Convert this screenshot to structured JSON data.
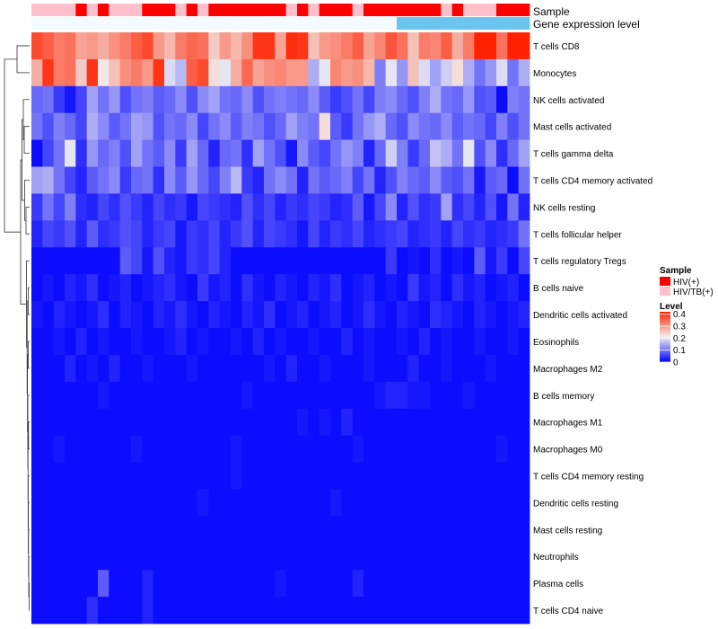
{
  "chart_data": {
    "type": "heatmap",
    "title": "",
    "annotation_tracks": [
      "Sample",
      "Gene expression level"
    ],
    "legends": {
      "sample": {
        "title": "Sample",
        "entries": [
          {
            "label": "HIV(+)",
            "color": "#ff0000"
          },
          {
            "label": "HIV/TB(+)",
            "color": "#ffc0cb"
          }
        ]
      },
      "level": {
        "title": "Level",
        "ticks": [
          "0.4",
          "0.3",
          "0.2",
          "0.1",
          "0"
        ],
        "tick_values": [
          0.4,
          0.3,
          0.2,
          0.1,
          0
        ],
        "range": [
          0,
          0.42
        ],
        "colors": {
          "low": "#0000ff",
          "mid": "#f2f2f2",
          "high": "#ff2200"
        }
      }
    },
    "sample_groups": [
      "HIV/TB(+)",
      "HIV/TB(+)",
      "HIV/TB(+)",
      "HIV/TB(+)",
      "HIV(+)",
      "HIV/TB(+)",
      "HIV(+)",
      "HIV/TB(+)",
      "HIV/TB(+)",
      "HIV/TB(+)",
      "HIV(+)",
      "HIV(+)",
      "HIV(+)",
      "HIV/TB(+)",
      "HIV(+)",
      "HIV/TB(+)",
      "HIV(+)",
      "HIV(+)",
      "HIV(+)",
      "HIV(+)",
      "HIV(+)",
      "HIV(+)",
      "HIV(+)",
      "HIV/TB(+)",
      "HIV(+)",
      "HIV/TB(+)",
      "HIV(+)",
      "HIV(+)",
      "HIV(+)",
      "HIV/TB(+)",
      "HIV(+)",
      "HIV(+)",
      "HIV(+)",
      "HIV(+)",
      "HIV(+)",
      "HIV(+)",
      "HIV(+)",
      "HIV/TB(+)",
      "HIV(+)",
      "HIV/TB(+)",
      "HIV/TB(+)",
      "HIV/TB(+)",
      "HIV(+)",
      "HIV(+)",
      "HIV(+)"
    ],
    "expression_track": [
      0,
      0,
      0,
      0,
      0,
      0,
      0,
      0,
      0,
      0,
      0,
      0,
      0,
      0,
      0,
      0,
      0,
      0,
      0,
      0,
      0,
      0,
      0,
      0,
      0,
      0,
      0,
      0,
      0,
      0,
      0,
      0,
      0,
      1,
      1,
      1,
      1,
      1,
      1,
      1,
      1,
      1,
      1,
      1,
      1
    ],
    "expression_track_colors": [
      "#f4fbfe",
      "#6cc5ee"
    ],
    "rows": [
      "T cells CD8",
      "Monocytes",
      "NK cells activated",
      "Mast cells activated",
      "T cells gamma delta",
      "T cells CD4 memory activated",
      "NK cells resting",
      "T cells follicular helper",
      "T cells regulatory  Tregs",
      "B cells naive",
      "Dendritic cells activated",
      "Eosinophils",
      "Macrophages M2",
      "B cells memory",
      "Macrophages M1",
      "Macrophages M0",
      "T cells CD4 memory resting",
      "Dendritic cells resting",
      "Mast cells resting",
      "Neutrophils",
      "Plasma cells",
      "T cells CD4 naive"
    ],
    "values": [
      [
        0.38,
        0.36,
        0.33,
        0.34,
        0.29,
        0.3,
        0.28,
        0.31,
        0.33,
        0.36,
        0.38,
        0.3,
        0.27,
        0.33,
        0.35,
        0.34,
        0.25,
        0.3,
        0.27,
        0.31,
        0.4,
        0.4,
        0.29,
        0.41,
        0.4,
        0.26,
        0.3,
        0.31,
        0.33,
        0.36,
        0.29,
        0.32,
        0.37,
        0.34,
        0.26,
        0.33,
        0.32,
        0.36,
        0.28,
        0.33,
        0.42,
        0.42,
        0.34,
        0.42,
        0.42
      ],
      [
        0.28,
        0.4,
        0.33,
        0.34,
        0.25,
        0.4,
        0.22,
        0.26,
        0.31,
        0.33,
        0.3,
        0.4,
        0.19,
        0.16,
        0.36,
        0.38,
        0.23,
        0.2,
        0.28,
        0.35,
        0.29,
        0.31,
        0.32,
        0.3,
        0.3,
        0.15,
        0.2,
        0.32,
        0.3,
        0.31,
        0.27,
        0.11,
        0.2,
        0.13,
        0.26,
        0.19,
        0.14,
        0.18,
        0.23,
        0.15,
        0.1,
        0.13,
        0.19,
        0.1,
        0.15
      ],
      [
        0.09,
        0.1,
        0.05,
        0.02,
        0.06,
        0.14,
        0.1,
        0.13,
        0.07,
        0.1,
        0.11,
        0.08,
        0.09,
        0.12,
        0.07,
        0.12,
        0.14,
        0.1,
        0.09,
        0.12,
        0.07,
        0.1,
        0.11,
        0.1,
        0.09,
        0.12,
        0.08,
        0.05,
        0.07,
        0.1,
        0.06,
        0.11,
        0.12,
        0.09,
        0.07,
        0.11,
        0.15,
        0.1,
        0.09,
        0.13,
        0.07,
        0.08,
        0.01,
        0.11,
        0.1
      ],
      [
        0.1,
        0.07,
        0.11,
        0.09,
        0.06,
        0.15,
        0.12,
        0.08,
        0.1,
        0.14,
        0.13,
        0.07,
        0.1,
        0.09,
        0.12,
        0.06,
        0.1,
        0.12,
        0.08,
        0.11,
        0.1,
        0.07,
        0.09,
        0.14,
        0.11,
        0.1,
        0.23,
        0.08,
        0.05,
        0.1,
        0.13,
        0.15,
        0.09,
        0.07,
        0.12,
        0.1,
        0.09,
        0.12,
        0.08,
        0.1,
        0.09,
        0.06,
        0.11,
        0.07,
        0.1
      ],
      [
        0.01,
        0.06,
        0.1,
        0.2,
        0.04,
        0.13,
        0.09,
        0.11,
        0.07,
        0.14,
        0.1,
        0.08,
        0.12,
        0.05,
        0.14,
        0.09,
        0.03,
        0.09,
        0.1,
        0.04,
        0.14,
        0.1,
        0.07,
        0.02,
        0.12,
        0.08,
        0.06,
        0.1,
        0.13,
        0.11,
        0.03,
        0.09,
        0.18,
        0.11,
        0.05,
        0.09,
        0.17,
        0.15,
        0.1,
        0.2,
        0.07,
        0.12,
        0.04,
        0.09,
        0.14
      ],
      [
        0.14,
        0.15,
        0.1,
        0.06,
        0.03,
        0.08,
        0.1,
        0.12,
        0.05,
        0.09,
        0.1,
        0.04,
        0.12,
        0.08,
        0.13,
        0.09,
        0.06,
        0.11,
        0.16,
        0.05,
        0.03,
        0.1,
        0.12,
        0.1,
        0.03,
        0.1,
        0.08,
        0.09,
        0.11,
        0.06,
        0.1,
        0.03,
        0.07,
        0.11,
        0.09,
        0.08,
        0.12,
        0.08,
        0.07,
        0.1,
        0.02,
        0.08,
        0.09,
        0.01,
        0.1
      ],
      [
        0.05,
        0.1,
        0.06,
        0.11,
        0.04,
        0.03,
        0.06,
        0.04,
        0.07,
        0.05,
        0.03,
        0.06,
        0.04,
        0.05,
        0.02,
        0.06,
        0.05,
        0.04,
        0.03,
        0.07,
        0.04,
        0.06,
        0.03,
        0.05,
        0.04,
        0.06,
        0.05,
        0.03,
        0.04,
        0.08,
        0.02,
        0.06,
        0.12,
        0.03,
        0.07,
        0.04,
        0.05,
        0.14,
        0.04,
        0.06,
        0.03,
        0.07,
        0.02,
        0.1,
        0.03
      ],
      [
        0.03,
        0.06,
        0.05,
        0.07,
        0.03,
        0.08,
        0.04,
        0.05,
        0.07,
        0.06,
        0.03,
        0.05,
        0.06,
        0.02,
        0.05,
        0.04,
        0.06,
        0.03,
        0.05,
        0.07,
        0.03,
        0.06,
        0.05,
        0.04,
        0.02,
        0.06,
        0.03,
        0.05,
        0.04,
        0.06,
        0.03,
        0.04,
        0.05,
        0.06,
        0.03,
        0.04,
        0.05,
        0.03,
        0.06,
        0.04,
        0.05,
        0.03,
        0.04,
        0.05,
        0.1
      ],
      [
        0.01,
        0.01,
        0.01,
        0.01,
        0.01,
        0.01,
        0.01,
        0.01,
        0.08,
        0.06,
        0.02,
        0.07,
        0.03,
        0.02,
        0.05,
        0.04,
        0.06,
        0.03,
        0.01,
        0.01,
        0.01,
        0.01,
        0.01,
        0.01,
        0.01,
        0.01,
        0.01,
        0.01,
        0.01,
        0.01,
        0.01,
        0.01,
        0.05,
        0.01,
        0.02,
        0.01,
        0.04,
        0.01,
        0.02,
        0.01,
        0.08,
        0.02,
        0.05,
        0.01,
        0.06
      ],
      [
        0.01,
        0.02,
        0.01,
        0.03,
        0.02,
        0.04,
        0.01,
        0.02,
        0.03,
        0.01,
        0.02,
        0.03,
        0.04,
        0.02,
        0.01,
        0.05,
        0.02,
        0.03,
        0.01,
        0.04,
        0.02,
        0.01,
        0.03,
        0.02,
        0.01,
        0.03,
        0.02,
        0.04,
        0.01,
        0.02,
        0.03,
        0.01,
        0.02,
        0.01,
        0.05,
        0.02,
        0.03,
        0.01,
        0.04,
        0.02,
        0.03,
        0.01,
        0.02,
        0.03,
        0.01
      ],
      [
        0.02,
        0.01,
        0.03,
        0.02,
        0.01,
        0.02,
        0.04,
        0.01,
        0.03,
        0.02,
        0.01,
        0.03,
        0.02,
        0.04,
        0.02,
        0.01,
        0.03,
        0.02,
        0.01,
        0.03,
        0.02,
        0.04,
        0.01,
        0.02,
        0.03,
        0.01,
        0.02,
        0.03,
        0.01,
        0.02,
        0.04,
        0.02,
        0.01,
        0.03,
        0.02,
        0.01,
        0.04,
        0.03,
        0.02,
        0.01,
        0.03,
        0.02,
        0.01,
        0.02,
        0.03
      ],
      [
        0.01,
        0.01,
        0.02,
        0.01,
        0.03,
        0.01,
        0.02,
        0.01,
        0.01,
        0.02,
        0.01,
        0.01,
        0.02,
        0.03,
        0.01,
        0.02,
        0.01,
        0.01,
        0.02,
        0.01,
        0.03,
        0.01,
        0.02,
        0.01,
        0.01,
        0.02,
        0.01,
        0.01,
        0.03,
        0.01,
        0.02,
        0.01,
        0.01,
        0.02,
        0.01,
        0.03,
        0.01,
        0.02,
        0.01,
        0.01,
        0.02,
        0.01,
        0.01,
        0.02,
        0.01
      ],
      [
        0.01,
        0.01,
        0.01,
        0.03,
        0.01,
        0.02,
        0.01,
        0.03,
        0.01,
        0.01,
        0.02,
        0.01,
        0.01,
        0.01,
        0.02,
        0.01,
        0.01,
        0.01,
        0.01,
        0.01,
        0.01,
        0.02,
        0.01,
        0.03,
        0.01,
        0.01,
        0.02,
        0.01,
        0.01,
        0.01,
        0.02,
        0.01,
        0.01,
        0.01,
        0.03,
        0.01,
        0.01,
        0.02,
        0.01,
        0.01,
        0.01,
        0.02,
        0.01,
        0.01,
        0.01
      ],
      [
        0.01,
        0.01,
        0.01,
        0.01,
        0.01,
        0.01,
        0.02,
        0.01,
        0.01,
        0.01,
        0.01,
        0.01,
        0.01,
        0.01,
        0.01,
        0.01,
        0.01,
        0.01,
        0.01,
        0.02,
        0.01,
        0.01,
        0.01,
        0.01,
        0.01,
        0.01,
        0.01,
        0.01,
        0.01,
        0.01,
        0.01,
        0.02,
        0.03,
        0.03,
        0.02,
        0.02,
        0.01,
        0.01,
        0.01,
        0.02,
        0.01,
        0.01,
        0.01,
        0.01,
        0.01
      ],
      [
        0.01,
        0.01,
        0.01,
        0.01,
        0.01,
        0.01,
        0.01,
        0.01,
        0.01,
        0.01,
        0.01,
        0.01,
        0.01,
        0.01,
        0.01,
        0.01,
        0.01,
        0.01,
        0.01,
        0.01,
        0.01,
        0.01,
        0.01,
        0.01,
        0.02,
        0.01,
        0.02,
        0.01,
        0.03,
        0.01,
        0.01,
        0.01,
        0.01,
        0.01,
        0.01,
        0.01,
        0.01,
        0.01,
        0.01,
        0.01,
        0.01,
        0.01,
        0.01,
        0.01,
        0.01
      ],
      [
        0.01,
        0.01,
        0.02,
        0.01,
        0.01,
        0.01,
        0.01,
        0.01,
        0.01,
        0.02,
        0.01,
        0.01,
        0.01,
        0.01,
        0.01,
        0.01,
        0.01,
        0.01,
        0.02,
        0.01,
        0.01,
        0.01,
        0.01,
        0.01,
        0.01,
        0.01,
        0.01,
        0.01,
        0.01,
        0.02,
        0.01,
        0.01,
        0.01,
        0.01,
        0.01,
        0.01,
        0.01,
        0.01,
        0.01,
        0.01,
        0.01,
        0.01,
        0.02,
        0.01,
        0.01
      ],
      [
        0.01,
        0.01,
        0.01,
        0.01,
        0.01,
        0.01,
        0.01,
        0.01,
        0.01,
        0.01,
        0.01,
        0.01,
        0.01,
        0.01,
        0.01,
        0.01,
        0.01,
        0.01,
        0.02,
        0.01,
        0.01,
        0.01,
        0.01,
        0.01,
        0.01,
        0.01,
        0.01,
        0.01,
        0.01,
        0.01,
        0.01,
        0.01,
        0.01,
        0.01,
        0.01,
        0.01,
        0.01,
        0.01,
        0.01,
        0.01,
        0.01,
        0.01,
        0.01,
        0.01,
        0.01
      ],
      [
        0.01,
        0.01,
        0.01,
        0.01,
        0.01,
        0.01,
        0.01,
        0.01,
        0.01,
        0.01,
        0.01,
        0.01,
        0.01,
        0.01,
        0.01,
        0.02,
        0.01,
        0.01,
        0.01,
        0.01,
        0.01,
        0.01,
        0.01,
        0.01,
        0.01,
        0.01,
        0.01,
        0.02,
        0.01,
        0.01,
        0.01,
        0.01,
        0.01,
        0.01,
        0.01,
        0.01,
        0.01,
        0.01,
        0.01,
        0.01,
        0.01,
        0.01,
        0.01,
        0.01,
        0.01
      ],
      [
        0.01,
        0.01,
        0.01,
        0.01,
        0.01,
        0.01,
        0.01,
        0.01,
        0.01,
        0.01,
        0.01,
        0.01,
        0.01,
        0.01,
        0.01,
        0.01,
        0.01,
        0.01,
        0.01,
        0.01,
        0.01,
        0.01,
        0.01,
        0.01,
        0.01,
        0.01,
        0.01,
        0.01,
        0.01,
        0.01,
        0.01,
        0.01,
        0.01,
        0.01,
        0.01,
        0.01,
        0.01,
        0.01,
        0.01,
        0.01,
        0.01,
        0.01,
        0.01,
        0.01,
        0.01
      ],
      [
        0.01,
        0.01,
        0.01,
        0.01,
        0.01,
        0.01,
        0.01,
        0.01,
        0.01,
        0.01,
        0.01,
        0.01,
        0.01,
        0.01,
        0.01,
        0.01,
        0.01,
        0.01,
        0.01,
        0.01,
        0.01,
        0.01,
        0.01,
        0.01,
        0.01,
        0.01,
        0.01,
        0.01,
        0.01,
        0.01,
        0.01,
        0.01,
        0.01,
        0.01,
        0.01,
        0.01,
        0.01,
        0.01,
        0.01,
        0.01,
        0.01,
        0.01,
        0.01,
        0.01,
        0.01
      ],
      [
        0.01,
        0.01,
        0.01,
        0.01,
        0.01,
        0.01,
        0.08,
        0.01,
        0.01,
        0.01,
        0.03,
        0.01,
        0.01,
        0.01,
        0.01,
        0.01,
        0.01,
        0.01,
        0.01,
        0.01,
        0.01,
        0.01,
        0.02,
        0.01,
        0.01,
        0.01,
        0.01,
        0.01,
        0.01,
        0.03,
        0.01,
        0.01,
        0.01,
        0.01,
        0.01,
        0.01,
        0.01,
        0.01,
        0.01,
        0.01,
        0.01,
        0.01,
        0.01,
        0.01,
        0.01
      ],
      [
        0.01,
        0.01,
        0.01,
        0.01,
        0.01,
        0.04,
        0.01,
        0.01,
        0.01,
        0.01,
        0.03,
        0.01,
        0.01,
        0.01,
        0.01,
        0.01,
        0.01,
        0.01,
        0.01,
        0.01,
        0.01,
        0.01,
        0.01,
        0.01,
        0.01,
        0.01,
        0.01,
        0.01,
        0.01,
        0.01,
        0.01,
        0.01,
        0.01,
        0.01,
        0.01,
        0.01,
        0.01,
        0.01,
        0.01,
        0.01,
        0.01,
        0.01,
        0.01,
        0.01,
        0.01
      ]
    ]
  }
}
